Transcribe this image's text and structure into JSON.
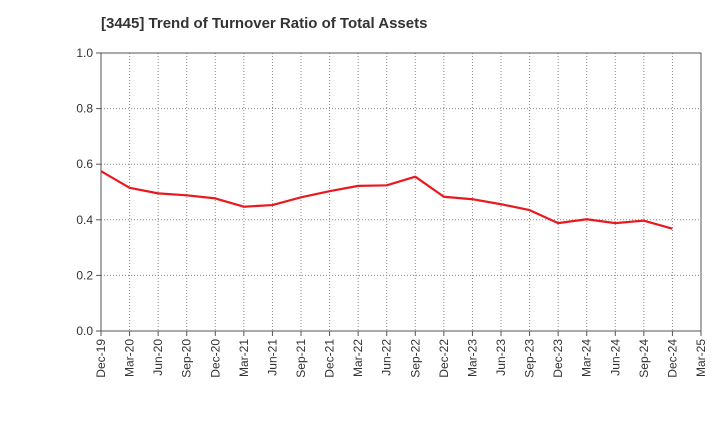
{
  "chart_data": {
    "type": "line",
    "title": "[3445]  Trend of Turnover Ratio of Total Assets",
    "xlabel": "",
    "ylabel": "",
    "categories": [
      "Dec-19",
      "Mar-20",
      "Jun-20",
      "Sep-20",
      "Dec-20",
      "Mar-21",
      "Jun-21",
      "Sep-21",
      "Dec-21",
      "Mar-22",
      "Jun-22",
      "Sep-22",
      "Dec-22",
      "Mar-23",
      "Jun-23",
      "Sep-23",
      "Dec-23",
      "Mar-24",
      "Jun-24",
      "Sep-24",
      "Dec-24",
      "Mar-25"
    ],
    "series": [
      {
        "values": [
          0.575,
          0.515,
          0.495,
          0.488,
          0.477,
          0.447,
          0.453,
          0.481,
          0.503,
          0.522,
          0.524,
          0.555,
          0.483,
          0.474,
          0.456,
          0.435,
          0.388,
          0.402,
          0.388,
          0.397,
          0.368,
          null
        ],
        "color": "#e8191e"
      }
    ],
    "ylim": [
      0,
      1.0
    ],
    "yticks": [
      "0.0",
      "0.2",
      "0.4",
      "0.6",
      "0.8",
      "1.0"
    ],
    "grid": true,
    "legend": "none"
  }
}
